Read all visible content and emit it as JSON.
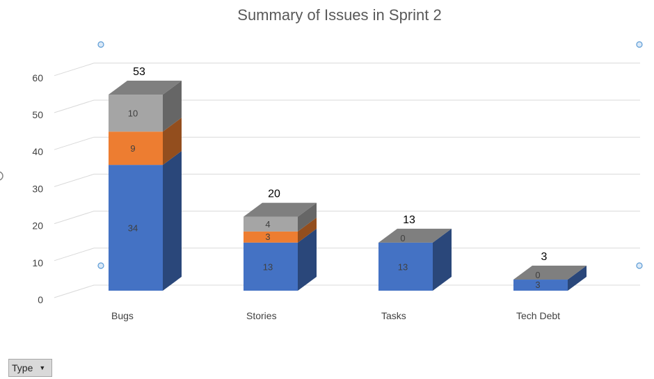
{
  "chart_data": {
    "type": "bar",
    "stacked": true,
    "three_d": true,
    "title": "Summary of Issues in Sprint 2",
    "categories": [
      "Bugs",
      "Stories",
      "Tasks",
      "Tech Debt"
    ],
    "series": [
      {
        "color": "#4472c4",
        "values": [
          34,
          13,
          13,
          3
        ]
      },
      {
        "color": "#ed7d31",
        "values": [
          9,
          3,
          0,
          0
        ]
      },
      {
        "color": "#a5a5a5",
        "values": [
          10,
          4,
          0,
          0
        ]
      }
    ],
    "totals": [
      53,
      20,
      13,
      3
    ],
    "segment_labels": [
      [
        "34",
        "9",
        "10"
      ],
      [
        "13",
        "3",
        "4"
      ],
      [
        "13",
        "0",
        ""
      ],
      [
        "3",
        "0",
        ""
      ]
    ],
    "yticks": [
      0,
      10,
      20,
      30,
      40,
      50,
      60
    ],
    "ylim": [
      0,
      64
    ],
    "grid": true,
    "legend": "none"
  },
  "filter": {
    "label": "Type",
    "icon": "dropdown-arrow-icon"
  }
}
